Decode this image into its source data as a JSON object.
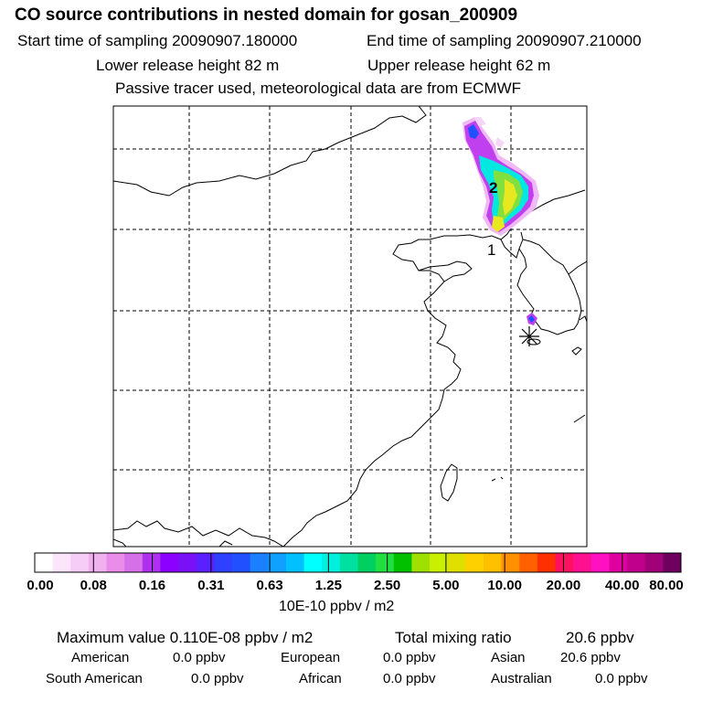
{
  "title": "CO  source contributions in nested domain for gosan_200909",
  "start_time": "Start time of sampling 20090907.180000",
  "end_time": "End time of sampling 20090907.210000",
  "lower_release": "Lower release height   82 m",
  "upper_release": "Upper release height   62 m",
  "tracer_note": "Passive tracer used, meteorological data are from ECMWF",
  "map": {
    "labels": [
      {
        "id": "label-2",
        "text": "2"
      },
      {
        "id": "label-1",
        "text": "1"
      }
    ],
    "receptor_icon": "asterisk-receptor-icon",
    "colors": {
      "coast": "#000000",
      "grid": "#000000"
    }
  },
  "colorbar": {
    "tick_labels": [
      "0.00",
      "0.08",
      "0.16",
      "0.31",
      "0.63",
      "1.25",
      "2.50",
      "5.00",
      "10.00",
      "20.00",
      "40.00",
      "80.00"
    ],
    "colors": [
      "#ffffff",
      "#fbe5fb",
      "#f6cdf6",
      "#f1b1f1",
      "#ea8cea",
      "#d670e8",
      "#b030f0",
      "#8c00ff",
      "#7a10f5",
      "#5a20ff",
      "#3040ff",
      "#2050ff",
      "#1a80ff",
      "#10a0ff",
      "#00c0ff",
      "#00ffff",
      "#00f0e0",
      "#00e0a0",
      "#00d060",
      "#20e040",
      "#00c000",
      "#a0e000",
      "#c8f000",
      "#e0e000",
      "#ffd000",
      "#ffc000",
      "#ff9000",
      "#ff6000",
      "#ff3000",
      "#ff1060",
      "#ff1090",
      "#ff10c0",
      "#e000a0",
      "#c0008c",
      "#a00078",
      "#700060"
    ],
    "unit": "10E-10 ppbv / m2"
  },
  "stats": {
    "max_label": "Maximum value  0.110E-08 ppbv / m2",
    "total_label": "Total mixing ratio",
    "total_value": "20.6 ppbv"
  },
  "regions": [
    {
      "name": "American",
      "value": "0.0 ppbv"
    },
    {
      "name": "European",
      "value": "0.0 ppbv"
    },
    {
      "name": "Asian",
      "value": "20.6 ppbv"
    },
    {
      "name": "South American",
      "value": "0.0 ppbv"
    },
    {
      "name": "African",
      "value": "0.0 ppbv"
    },
    {
      "name": "Australian",
      "value": "0.0 ppbv"
    }
  ]
}
